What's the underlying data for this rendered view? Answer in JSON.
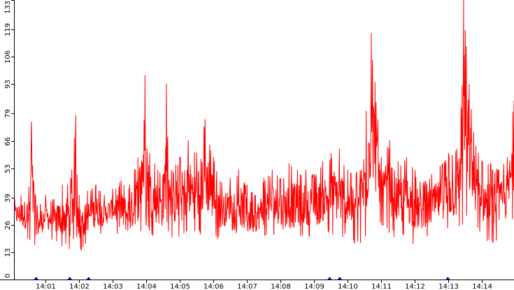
{
  "chart_data": {
    "type": "line",
    "title": "",
    "xlabel": "",
    "ylabel": "",
    "grid": false,
    "legend": "none",
    "colors": {
      "series": "#ff0000",
      "axis": "#000000",
      "event_marker": "#0000cc",
      "background": "#ffffff"
    },
    "y_ticks": [
      "0",
      "13",
      "26",
      "39",
      "53",
      "66",
      "79",
      "93",
      "106",
      "119",
      "133"
    ],
    "y_tick_values": [
      0,
      13,
      26,
      39,
      53,
      66,
      79,
      93,
      106,
      119,
      133
    ],
    "ylim": [
      0,
      133
    ],
    "x_ticks": [
      "14:01",
      "14:02",
      "14:03",
      "14:04",
      "14:05",
      "14:06",
      "14:07",
      "14:08",
      "14:09",
      "14:10",
      "14:11",
      "14:12",
      "14:13",
      "14:14"
    ],
    "x_tick_minutes": [
      1,
      2,
      3,
      4,
      5,
      6,
      7,
      8,
      9,
      10,
      11,
      12,
      13,
      14
    ],
    "xlim_minutes": [
      0.08,
      14.95
    ],
    "event_markers_minutes": [
      0.72,
      1.72,
      2.28,
      9.46,
      9.76,
      12.98
    ],
    "series": [
      {
        "color": "#ff0000",
        "x_minutes": [
          0.08,
          0.5,
          0.58,
          0.75,
          1.0,
          1.25,
          1.5,
          1.75,
          1.9,
          2.0,
          2.25,
          2.5,
          2.75,
          3.0,
          3.25,
          3.5,
          3.75,
          3.96,
          4.1,
          4.25,
          4.5,
          4.6,
          4.75,
          5.0,
          5.25,
          5.5,
          5.75,
          6.0,
          6.25,
          6.5,
          6.75,
          7.0,
          7.25,
          7.5,
          7.75,
          8.0,
          8.25,
          8.5,
          8.75,
          9.0,
          9.25,
          9.5,
          9.75,
          10.0,
          10.25,
          10.55,
          10.7,
          10.9,
          11.0,
          11.25,
          11.5,
          11.75,
          12.0,
          12.25,
          12.5,
          12.75,
          13.0,
          13.25,
          13.45,
          13.75,
          14.0,
          14.25,
          14.5,
          14.75,
          14.95
        ],
        "values": [
          38,
          44,
          75,
          35,
          40,
          38,
          45,
          48,
          78,
          40,
          42,
          45,
          40,
          43,
          47,
          45,
          58,
          97,
          60,
          55,
          50,
          93,
          52,
          58,
          66,
          60,
          76,
          58,
          46,
          48,
          52,
          45,
          40,
          48,
          52,
          48,
          55,
          52,
          52,
          50,
          56,
          60,
          62,
          52,
          50,
          80,
          117,
          76,
          58,
          66,
          56,
          58,
          52,
          46,
          50,
          54,
          60,
          62,
          133,
          70,
          56,
          55,
          52,
          58,
          85
        ],
        "lows": [
          24,
          18,
          15,
          16,
          20,
          18,
          15,
          14,
          19,
          12,
          18,
          20,
          22,
          25,
          18,
          16,
          20,
          25,
          22,
          20,
          18,
          24,
          20,
          18,
          22,
          20,
          22,
          20,
          18,
          24,
          20,
          15,
          18,
          20,
          22,
          18,
          16,
          18,
          20,
          18,
          20,
          22,
          18,
          20,
          16,
          18,
          30,
          28,
          25,
          22,
          18,
          20,
          16,
          18,
          20,
          22,
          22,
          20,
          24,
          25,
          20,
          16,
          18,
          22,
          30
        ]
      }
    ]
  }
}
